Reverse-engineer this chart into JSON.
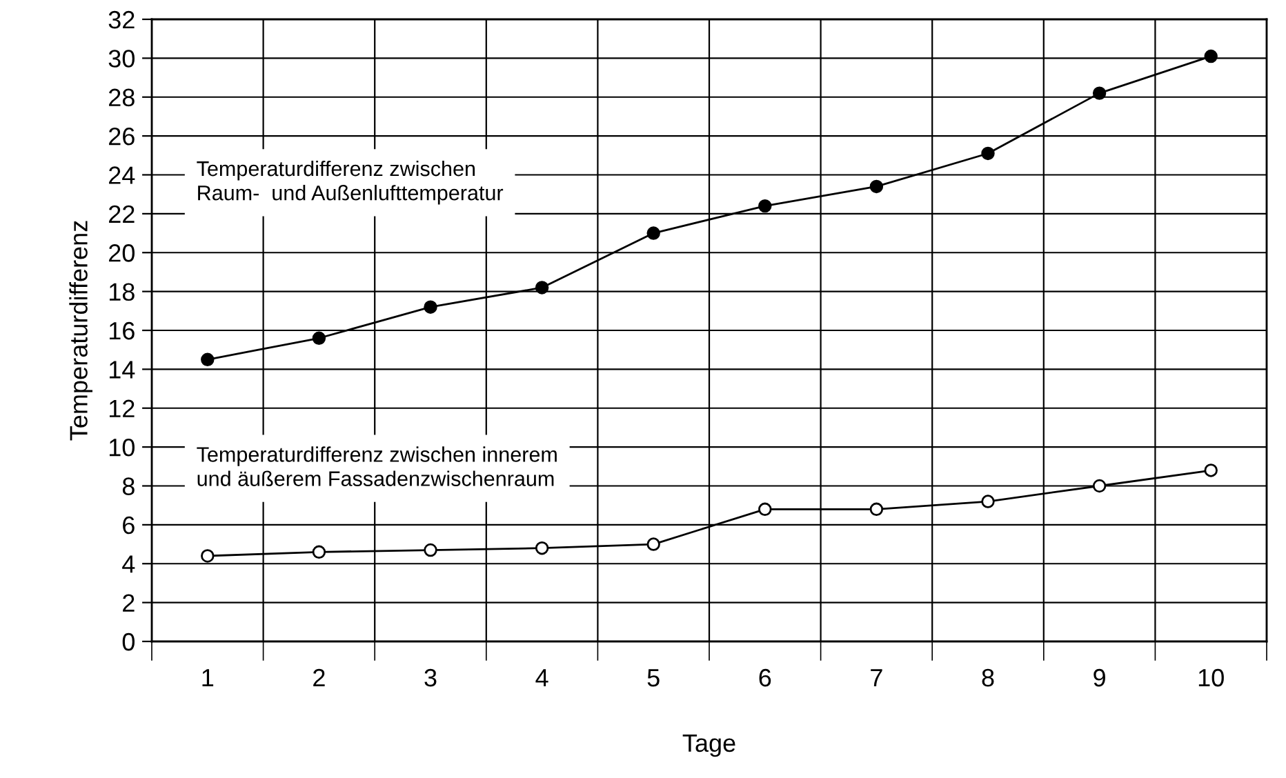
{
  "chart_data": {
    "type": "line",
    "xlabel": "Tage",
    "ylabel": "Temperaturdifferenz",
    "categories": [
      "1",
      "2",
      "3",
      "4",
      "5",
      "6",
      "7",
      "8",
      "9",
      "10"
    ],
    "series": [
      {
        "color": "#000000",
        "values": [
          14.5,
          15.6,
          17.2,
          18.2,
          21.0,
          22.4,
          23.4,
          25.1,
          28.2,
          30.1
        ]
      },
      {
        "color": "#000000",
        "values": [
          4.4,
          4.6,
          4.7,
          4.8,
          5.0,
          6.8,
          6.8,
          7.2,
          8.0,
          8.8
        ]
      }
    ],
    "ylim": [
      0,
      32
    ],
    "yticks": [
      0,
      2,
      4,
      6,
      8,
      10,
      12,
      14,
      16,
      18,
      20,
      22,
      24,
      26,
      28,
      30,
      32
    ],
    "grid": true,
    "marker": "circle",
    "line_style": "solid",
    "annotations": [
      "Temperaturdifferenz zwischen\nRaum-  und Außenlufttemperatur",
      "Temperaturdifferenz zwischen innerem\nund äußerem Fassadenzwischenraum"
    ]
  }
}
